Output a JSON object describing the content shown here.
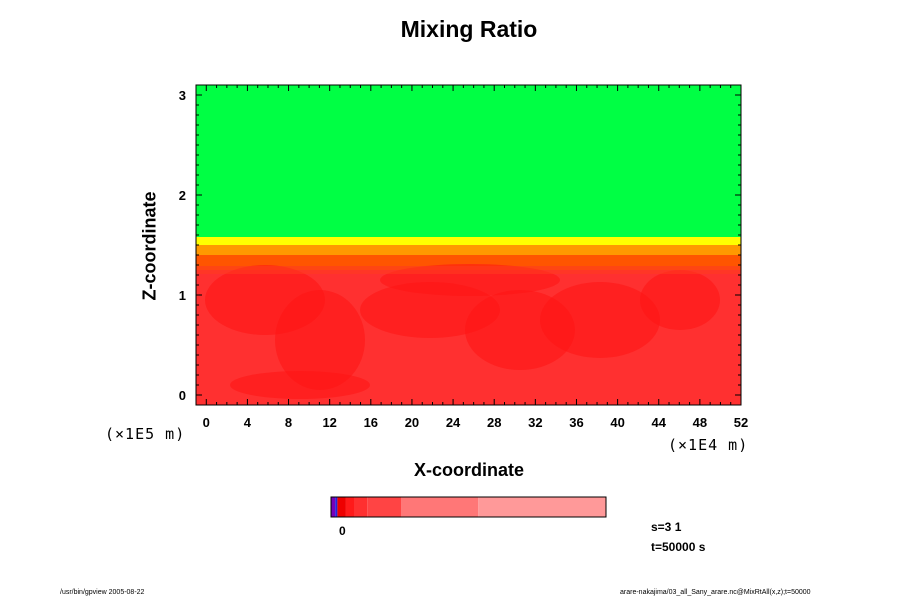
{
  "chart_data": {
    "type": "heatmap",
    "title": "Mixing Ratio",
    "xlabel": "X-coordinate",
    "ylabel": "Z-coordinate",
    "x_unit": "(×1E4 m)",
    "y_unit": "(×1E5 m)",
    "xlim": [
      -1,
      52
    ],
    "ylim": [
      -0.1,
      3.1
    ],
    "x_ticks": [
      "0",
      "4",
      "8",
      "12",
      "16",
      "20",
      "24",
      "28",
      "32",
      "36",
      "40",
      "44",
      "48",
      "52"
    ],
    "x_tick_values": [
      0,
      4,
      8,
      12,
      16,
      20,
      24,
      28,
      32,
      36,
      40,
      44,
      48,
      52
    ],
    "y_ticks": [
      "0",
      "1",
      "2",
      "3"
    ],
    "y_tick_values": [
      0,
      1,
      2,
      3
    ],
    "layers": [
      {
        "z_bottom": 1.58,
        "z_top": 3.1,
        "color": "#00ff44"
      },
      {
        "z_bottom": 1.5,
        "z_top": 1.58,
        "color": "#ffff00"
      },
      {
        "z_bottom": 1.4,
        "z_top": 1.5,
        "color": "#ff9900"
      },
      {
        "z_bottom": 1.25,
        "z_top": 1.4,
        "color": "#ff5500"
      },
      {
        "z_bottom": -0.1,
        "z_top": 1.25,
        "color": "#ff3030"
      }
    ],
    "colorbar": {
      "label": "0",
      "segments": [
        {
          "color": "#7700bb",
          "weight": 1
        },
        {
          "color": "#2222dd",
          "weight": 0.5
        },
        {
          "color": "#ee0000",
          "weight": 2
        },
        {
          "color": "#ff1a1a",
          "weight": 2
        },
        {
          "color": "#ff3030",
          "weight": 3
        },
        {
          "color": "#ff4444",
          "weight": 8
        },
        {
          "color": "#ff7777",
          "weight": 18
        },
        {
          "color": "#ff9999",
          "weight": 30
        }
      ]
    },
    "info": {
      "s": "s=3 1",
      "t": "t=50000 s"
    },
    "grid": false,
    "legend": "bottom"
  },
  "footer": {
    "left": "/usr/bin/gpview 2005-08-22",
    "right": "arare-nakajima/03_all_Sany_arare.nc@MixRtAll(x,z);t=50000"
  },
  "colors": {
    "background": "#ffffff",
    "frame": "#000000"
  }
}
